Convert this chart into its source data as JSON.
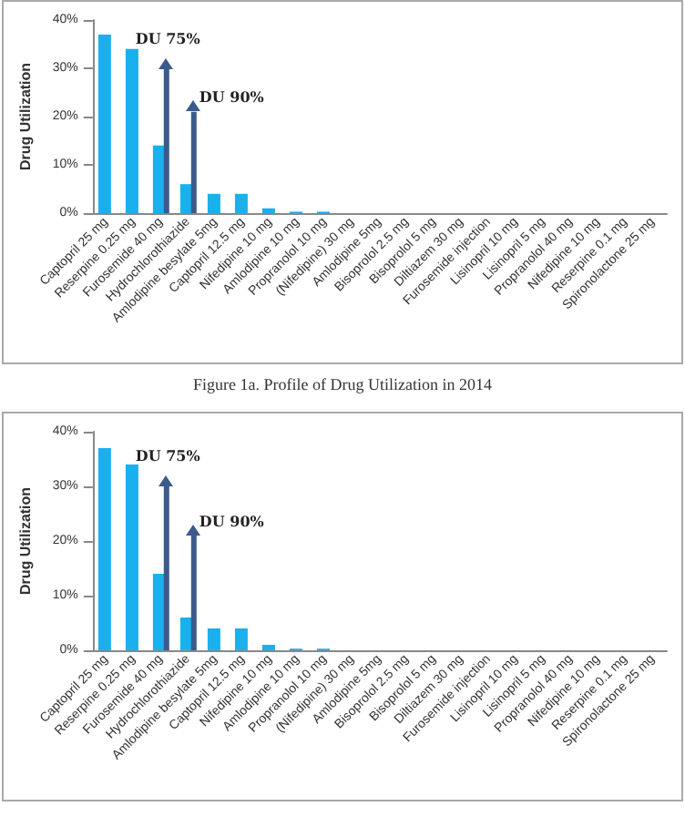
{
  "chart_data": [
    {
      "type": "bar",
      "title": "Figure 1a. Profile of Drug Utilization in 2014",
      "ylabel": "Drug Utilization",
      "categories": [
        "Captopril 25 mg",
        "Reserpine 0.25 mg",
        "Furosemide 40 mg",
        "Hydrochlorothiazide",
        "Amlodipine besylate 5mg",
        "Captopril 12.5 mg",
        "Nifedipine 10 mg",
        "Amlodipine 10 mg",
        "Propranolol 10 mg",
        "(Nifedipine) 30 mg",
        "Amlodipine 5mg",
        "Bisoprolol 2.5 mg",
        "Bisoprolol 5 mg",
        "Diltiazem 30 mg",
        "Furosemide injection",
        "Lisinopril 10 mg",
        "Lisinopril 5 mg",
        "Propranolol 40 mg",
        "Nifedipine 10 mg",
        "Reserpine 0.1 mg",
        "Spironolactone 25 mg"
      ],
      "series": [
        {
          "color": "#1ab0ee",
          "values": [
            37,
            34,
            14,
            6,
            4,
            4,
            1,
            0.3,
            0.3,
            0,
            0,
            0,
            0,
            0,
            0,
            0,
            0,
            0,
            0,
            0,
            0
          ]
        },
        {
          "color": "#3b5b8c",
          "values": [
            null,
            null,
            30,
            21,
            null,
            null,
            null,
            null,
            null,
            null,
            null,
            null,
            null,
            null,
            null,
            null,
            null,
            null,
            null,
            null,
            null
          ]
        }
      ],
      "ylim": [
        0,
        40
      ],
      "yticks": [
        {
          "value": 0,
          "label": "0%"
        },
        {
          "value": 10,
          "label": "10%"
        },
        {
          "value": 20,
          "label": "20%"
        },
        {
          "value": 30,
          "label": "30%"
        },
        {
          "value": 40,
          "label": "40%"
        }
      ],
      "grid": false,
      "annotations": [
        {
          "text": "DU 75%",
          "x": "Furosemide 40 mg",
          "y": 30
        },
        {
          "text": "DU 90%",
          "x": "Hydrochlorothiazide",
          "y": 21
        }
      ]
    },
    {
      "type": "bar",
      "ylabel": "Drug Utilization",
      "categories": [
        "Captopril 25 mg",
        "Reserpine 0.25 mg",
        "Furosemide 40 mg",
        "Hydrochlorothiazide",
        "Amlodipine besylate 5mg",
        "Captopril 12.5 mg",
        "Nifedipine 10 mg",
        "Amlodipine 10 mg",
        "Propranolol 10 mg",
        "(Nifedipine) 30 mg",
        "Amlodipine 5mg",
        "Bisoprolol 2.5 mg",
        "Bisoprolol 5 mg",
        "Diltiazem 30 mg",
        "Furosemide injection",
        "Lisinopril 10 mg",
        "Lisinopril 5 mg",
        "Propranolol 40 mg",
        "Nifedipine 10 mg",
        "Reserpine 0.1 mg",
        "Spironolactone 25 mg"
      ],
      "series": [
        {
          "color": "#1ab0ee",
          "values": [
            37,
            34,
            14,
            6,
            4,
            4,
            1,
            0.3,
            0.3,
            0,
            0,
            0,
            0,
            0,
            0,
            0,
            0,
            0,
            0,
            0,
            0
          ]
        },
        {
          "color": "#3b5b8c",
          "values": [
            null,
            null,
            30,
            21,
            null,
            null,
            null,
            null,
            null,
            null,
            null,
            null,
            null,
            null,
            null,
            null,
            null,
            null,
            null,
            null,
            null
          ]
        }
      ],
      "ylim": [
        0,
        40
      ],
      "yticks": [
        {
          "value": 0,
          "label": "0%"
        },
        {
          "value": 10,
          "label": "10%"
        },
        {
          "value": 20,
          "label": "20%"
        },
        {
          "value": 30,
          "label": "30%"
        },
        {
          "value": 40,
          "label": "40%"
        }
      ],
      "grid": false,
      "annotations": [
        {
          "text": "DU 75%",
          "x": "Furosemide 40 mg",
          "y": 30
        },
        {
          "text": "DU 90%",
          "x": "Hydrochlorothiazide",
          "y": 21
        }
      ]
    }
  ]
}
